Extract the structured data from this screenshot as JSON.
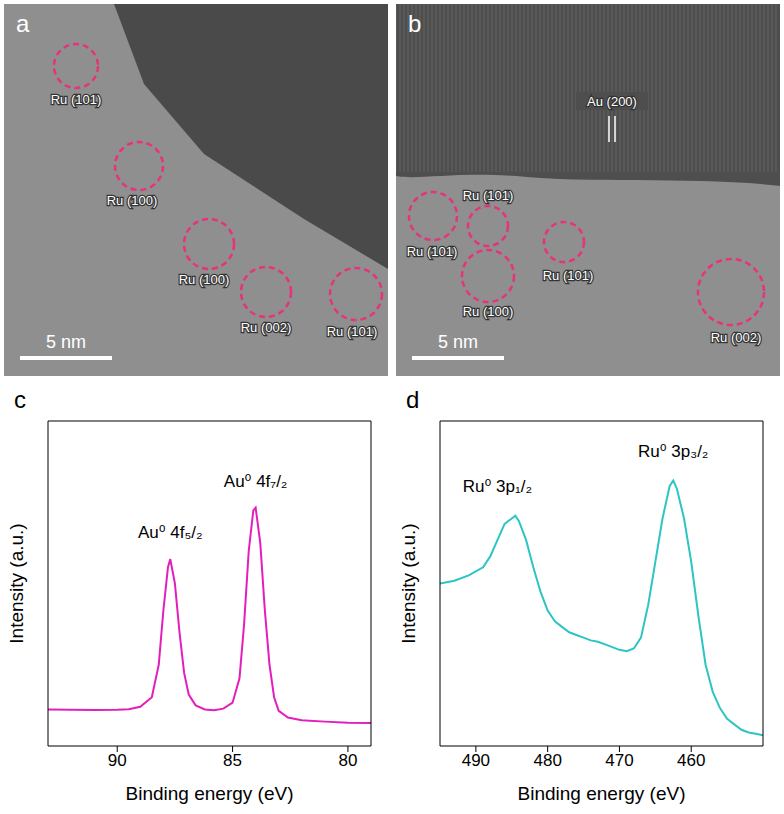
{
  "images": [
    {
      "panel": "a",
      "labels": [
        "Ru (101)",
        "Ru (100)",
        "Ru (100)",
        "Ru (002)",
        "Ru (101)"
      ],
      "scale_bar": "5 nm"
    },
    {
      "panel": "b",
      "labels": [
        "Ru (101)",
        "Ru (101)",
        "Ru (100)",
        "Ru (101)",
        "Ru (002)"
      ],
      "lattice": "Au (200)",
      "scale_bar": "5 nm"
    }
  ],
  "chart_data": [
    {
      "panel": "c",
      "type": "line",
      "x_label": "Binding energy (eV)",
      "y_label": "Intensity (a.u.)",
      "color": "#e21fbd",
      "x": [
        93,
        92,
        91,
        90,
        89.5,
        89,
        88.5,
        88.2,
        88.0,
        87.8,
        87.7,
        87.5,
        87.3,
        87.1,
        86.9,
        86.6,
        86.2,
        85.8,
        85.4,
        85.0,
        84.7,
        84.5,
        84.3,
        84.1,
        84.0,
        83.8,
        83.6,
        83.4,
        83.2,
        83.0,
        82.6,
        82,
        81,
        80,
        79
      ],
      "values": [
        13.5,
        13.4,
        13.3,
        13.4,
        13.6,
        14.5,
        18,
        30,
        50,
        66,
        69,
        60,
        42,
        27,
        19,
        15,
        13.5,
        13.2,
        13.8,
        16,
        25,
        45,
        72,
        87,
        88,
        75,
        50,
        30,
        18,
        13,
        10.5,
        9.5,
        9,
        8.6,
        8.5
      ],
      "xlim": [
        93,
        79
      ],
      "ylim": [
        0,
        120
      ],
      "xticks": [
        90,
        85,
        80
      ],
      "tick_labels": "x",
      "annotations": [
        {
          "text": "Au⁰ 4f₅/₂",
          "x": 87.7,
          "y": 79
        },
        {
          "text": "Au⁰ 4f₇/₂",
          "x": 84.0,
          "y": 98
        }
      ]
    },
    {
      "panel": "d",
      "type": "line",
      "x_label": "Binding energy (eV)",
      "y_label": "Intensity (a.u.)",
      "color": "#2ec4c4",
      "x": [
        495,
        493,
        491,
        489,
        488,
        487,
        486,
        485,
        484.5,
        484,
        483,
        482,
        481,
        480,
        479,
        478,
        477,
        476,
        475,
        474,
        473,
        472,
        471,
        470,
        469,
        468,
        467,
        466,
        465,
        464,
        463,
        462.5,
        462,
        461,
        460,
        459,
        458,
        457,
        456,
        455,
        454,
        453,
        452,
        451,
        450
      ],
      "values": [
        60,
        61,
        63,
        66,
        70,
        76,
        82,
        84,
        85,
        83,
        76,
        66,
        57,
        50,
        46,
        44,
        42,
        41,
        40,
        39,
        38.5,
        37.5,
        36.5,
        35.5,
        35,
        36,
        40,
        52,
        68,
        84,
        96,
        98,
        95,
        84,
        68,
        48,
        30,
        20,
        14,
        10,
        8,
        6,
        5,
        4.5,
        4
      ],
      "xlim": [
        495,
        450
      ],
      "ylim": [
        0,
        120
      ],
      "xticks": [
        490,
        480,
        470,
        460
      ],
      "tick_labels": "x",
      "annotations": [
        {
          "text": "Ru⁰ 3p₁/₂",
          "x": 487,
          "y": 96
        },
        {
          "text": "Ru⁰ 3p₃/₂",
          "x": 462.5,
          "y": 109
        }
      ]
    }
  ]
}
